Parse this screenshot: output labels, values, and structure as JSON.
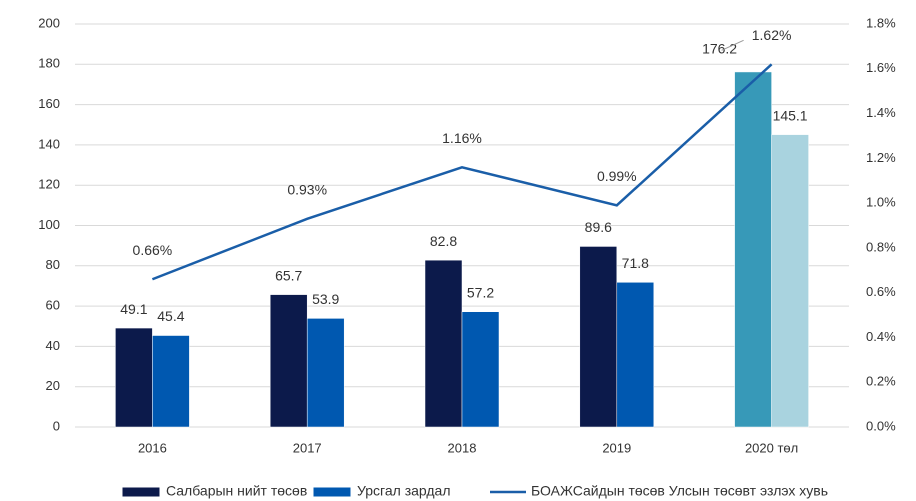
{
  "chart_data": {
    "type": "bar_line",
    "categories": [
      "2016",
      "2017",
      "2018",
      "2019",
      "2020 төл"
    ],
    "series": [
      {
        "name": "Салбарын нийт төсөв",
        "type": "bar",
        "color": "#0c1a4b",
        "point_colors": [
          "#0c1a4b",
          "#0c1a4b",
          "#0c1a4b",
          "#0c1a4b",
          "#3799b8"
        ],
        "values": [
          49.1,
          65.7,
          82.8,
          89.6,
          176.2
        ]
      },
      {
        "name": "Урсгал зардал",
        "type": "bar",
        "color": "#0058b0",
        "point_colors": [
          "#0058b0",
          "#0058b0",
          "#0058b0",
          "#0058b0",
          "#a9d3df"
        ],
        "values": [
          45.4,
          53.9,
          57.2,
          71.8,
          145.1
        ]
      },
      {
        "name": "БОАЖСайдын төсөв Улсын төсөвт эзлэх хувь",
        "type": "line",
        "axis": "y2",
        "color": "#1a5ea8",
        "values": [
          0.66,
          0.93,
          1.16,
          0.99,
          1.62
        ],
        "value_labels": [
          "0.66%",
          "0.93%",
          "1.16%",
          "0.99%",
          "1.62%"
        ]
      }
    ],
    "ylim": [
      0,
      200
    ],
    "yticks": [
      0,
      20,
      40,
      60,
      80,
      100,
      120,
      140,
      160,
      180,
      200
    ],
    "y2lim": [
      0,
      1.8
    ],
    "y2ticks": [
      {
        "value": 0,
        "label": "0.0%"
      },
      {
        "value": 0.2,
        "label": "0.2%"
      },
      {
        "value": 0.4,
        "label": "0.4%"
      },
      {
        "value": 0.6,
        "label": "0.6%"
      },
      {
        "value": 0.8,
        "label": "0.8%"
      },
      {
        "value": 1.0,
        "label": "1.0%"
      },
      {
        "value": 1.2,
        "label": "1.2%"
      },
      {
        "value": 1.4,
        "label": "1.4%"
      },
      {
        "value": 1.6,
        "label": "1.6%"
      },
      {
        "value": 1.8,
        "label": "1.8%"
      }
    ],
    "grid": true,
    "legend": "bottom"
  }
}
